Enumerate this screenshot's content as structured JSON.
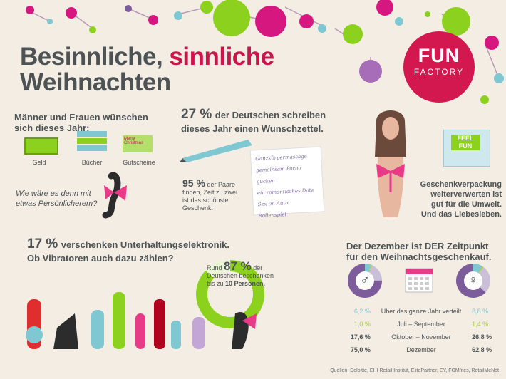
{
  "title": {
    "part1": "Besinnliche,",
    "part2": "sinnliche",
    "line2": "Weihnachten"
  },
  "logo": {
    "line1": "FUN",
    "line2": "FACTORY"
  },
  "wishes": {
    "heading_line1": "Männer und Frauen wünschen",
    "heading_line2": "sich dieses Jahr:",
    "items": [
      "Geld",
      "Bücher",
      "Gutscheine"
    ],
    "voucher_text": "Merry Christmas",
    "question_line1": "Wie wäre es denn mit",
    "question_line2": "etwas Persönlicherem?"
  },
  "wishlist": {
    "percent": "27 %",
    "text_line1": "der Deutschen schreiben",
    "text_line2": "dieses Jahr einen Wunschzettel.",
    "notes": [
      "Ganzkörpermassage",
      "gemeinsam Porno gucken",
      "ein romantisches Date",
      "Sex im Auto",
      "Rollenspiel"
    ]
  },
  "couples": {
    "percent": "95 %",
    "text_part1": "der Paare",
    "text_line2": "finden, Zeit zu zwei",
    "text_line3": "ist das schönste",
    "text_line4": "Geschenk."
  },
  "wrapping": {
    "box_line1": "FEEL",
    "box_line2": "FUN",
    "line1": "Geschenkverpackung",
    "line2": "weiterverwerten ist",
    "line3": "gut für die Umwelt.",
    "line4": "Und das Liebesleben."
  },
  "electronics": {
    "percent": "17 %",
    "text_part1": "verschenken Unterhaltungselektronik.",
    "line2": "Ob Vibratoren auch dazu zählen?"
  },
  "persons": {
    "prefix": "Rund",
    "percent": "87 %",
    "suffix": "der",
    "line2": "Deutschen beschenken",
    "line3_part1": "bis zu",
    "line3_bold": "10 Personen."
  },
  "december": {
    "heading_line1": "Der Dezember ist DER Zeitpunkt",
    "heading_line2": "für den Weihnachtsgeschenkauf.",
    "male_symbol": "♂",
    "female_symbol": "♀",
    "rows": [
      {
        "male": "6,2 %",
        "label": "Über das ganze Jahr verteilt",
        "female": "8,8 %",
        "bold": false
      },
      {
        "male": "1,0 %",
        "label": "Juli – September",
        "female": "1,4 %",
        "bold": false
      },
      {
        "male": "17,6 %",
        "label": "Oktober – November",
        "female": "26,8 %",
        "bold": true
      },
      {
        "male": "75,0 %",
        "label": "Dezember",
        "female": "62,8 %",
        "bold": true
      }
    ],
    "male_values": [
      6.2,
      1.0,
      17.6,
      75.0
    ],
    "female_values": [
      8.8,
      1.4,
      26.8,
      62.8
    ],
    "colors": [
      "#7fc7d1",
      "#a9cf3e",
      "#c9bfd6",
      "#7d5c9c"
    ]
  },
  "sources": "Quellen: Deloitte, EHI Retail Institut, ElitePartner, EY, FOM/ifes, RetailMeNot",
  "colors": {
    "accent": "#c8154c",
    "green": "#8cd11e",
    "purple": "#7d5c9c",
    "teal": "#7fc7d1"
  }
}
